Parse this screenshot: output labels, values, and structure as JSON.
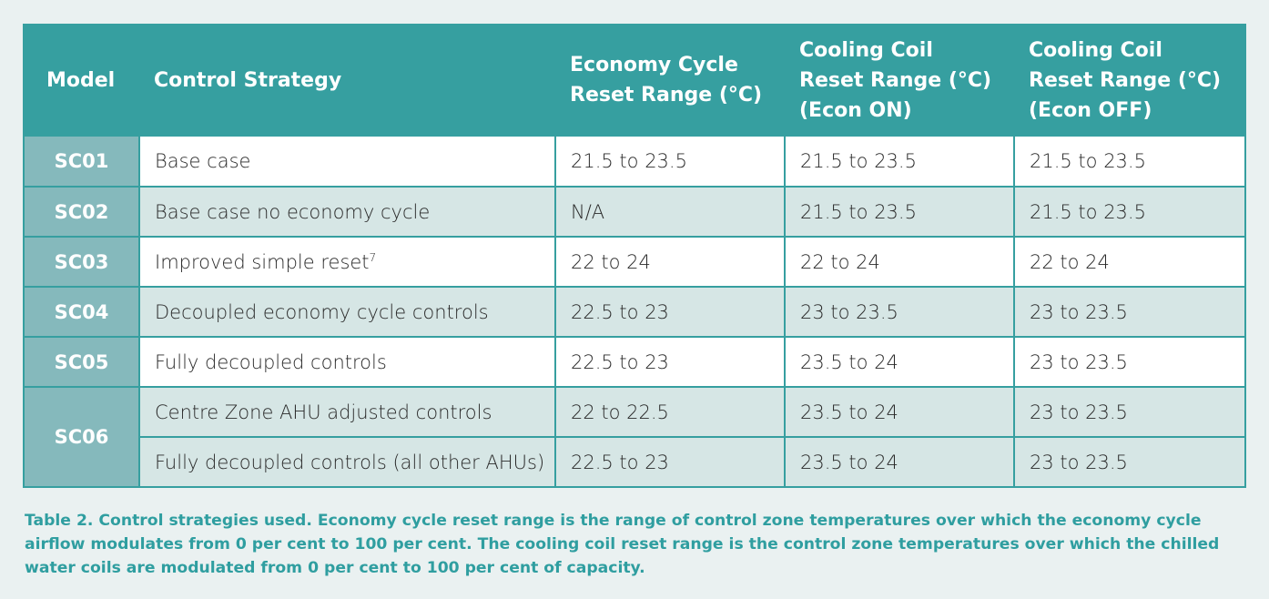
{
  "table": {
    "headers": [
      "Model",
      "Control Strategy",
      "Economy Cycle Reset Range (°C)",
      "Cooling Coil Reset Range (°C) (Econ ON)",
      "Cooling Coil Reset Range (°C) (Econ OFF)"
    ],
    "rows": [
      {
        "model": "SC01",
        "strategy": "Base case",
        "econ": "21.5 to 23.5",
        "coil_on": "21.5 to 23.5",
        "coil_off": "21.5 to 23.5"
      },
      {
        "model": "SC02",
        "strategy": "Base case no economy cycle",
        "econ": "N/A",
        "coil_on": "21.5 to 23.5",
        "coil_off": "21.5 to 23.5"
      },
      {
        "model": "SC03",
        "strategy": "Improved simple reset",
        "footnote": "7",
        "econ": "22 to 24",
        "coil_on": "22 to 24",
        "coil_off": "22 to 24"
      },
      {
        "model": "SC04",
        "strategy": "Decoupled economy cycle controls",
        "econ": "22.5 to 23",
        "coil_on": "23 to 23.5",
        "coil_off": "23 to 23.5"
      },
      {
        "model": "SC05",
        "strategy": "Fully decoupled controls",
        "econ": "22.5 to 23",
        "coil_on": "23.5 to 24",
        "coil_off": "23 to 23.5"
      },
      {
        "model": "SC06",
        "strategy": "Centre Zone AHU adjusted controls",
        "econ": "22 to 22.5",
        "coil_on": "23.5 to 24",
        "coil_off": "23 to 23.5"
      },
      {
        "model": "",
        "strategy": "Fully decoupled controls (all other AHUs)",
        "econ": "22.5 to 23",
        "coil_on": "23.5 to 24",
        "coil_off": "23 to 23.5"
      }
    ]
  },
  "caption": "Table 2. Control strategies used. Economy cycle reset range is the range of control zone temperatures over which the economy cycle airflow modulates from 0 per cent to 100 per cent. The cooling coil reset range is the control zone temperatures over which the chilled water coils are modulated from 0 per cent to 100 per cent of capacity.",
  "colors": {
    "header_bg": "#369fa0",
    "model_bg": "#85b9bc",
    "row_tint": "#d6e6e5",
    "row_light": "#ffffff",
    "caption_text": "#2f9ea0",
    "page_bg": "#eaf1f1"
  }
}
